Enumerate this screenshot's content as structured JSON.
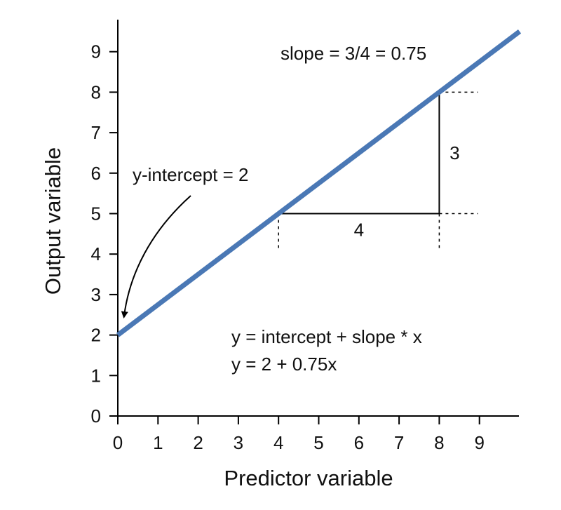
{
  "chart_data": {
    "type": "line",
    "xlabel": "Predictor variable",
    "ylabel": "Output variable",
    "xlim": [
      0,
      10
    ],
    "ylim": [
      0,
      10
    ],
    "x_ticks": [
      "0",
      "1",
      "2",
      "3",
      "4",
      "5",
      "6",
      "7",
      "8",
      "9"
    ],
    "y_ticks": [
      "0",
      "1",
      "2",
      "3",
      "4",
      "5",
      "6",
      "7",
      "8",
      "9"
    ],
    "grid": false,
    "series": [
      {
        "x": [
          0,
          10
        ],
        "y": [
          2,
          9.5
        ],
        "color": "#4a78b5"
      }
    ],
    "annotations": {
      "slope": "slope = 3/4 = 0.75",
      "intercept": "y-intercept = 2",
      "rise": "3",
      "run": "4",
      "equation_general": "y = intercept + slope * x",
      "equation_specific": "y = 2 + 0.75x"
    },
    "slope_triangle": {
      "x_start": 4,
      "x_end": 8,
      "y_start": 5,
      "y_end": 8
    }
  }
}
